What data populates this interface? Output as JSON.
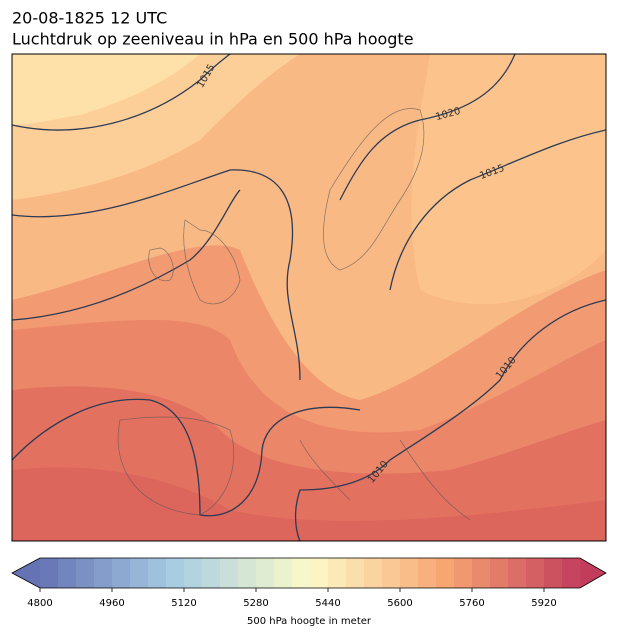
{
  "header": {
    "title": "20-08-1825 12 UTC",
    "subtitle": "Luchtdruk op zeeniveau in hPa en 500 hPa hoogte"
  },
  "contour_labels": [
    1015,
    1020,
    1015,
    1010,
    1010
  ],
  "colorbar": {
    "lim": [
      4800,
      6000
    ],
    "step": 40,
    "ticks": [
      4800,
      4960,
      5120,
      5280,
      5440,
      5600,
      5760,
      5920
    ],
    "label": "500 hPa hoogte in meter"
  }
}
